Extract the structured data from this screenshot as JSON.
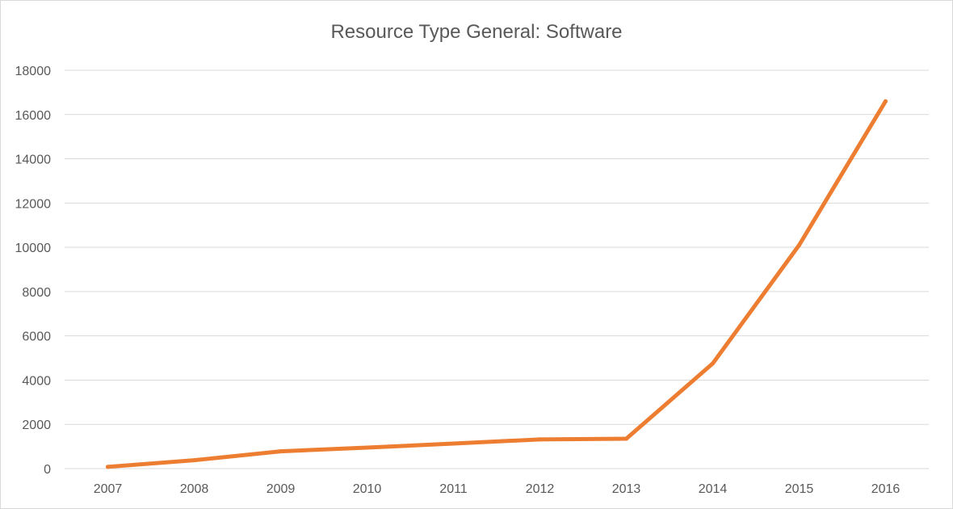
{
  "chart_data": {
    "type": "line",
    "title": "Resource Type General: Software",
    "xlabel": "",
    "ylabel": "",
    "categories": [
      "2007",
      "2008",
      "2009",
      "2010",
      "2011",
      "2012",
      "2013",
      "2014",
      "2015",
      "2016"
    ],
    "series": [
      {
        "values": [
          80,
          380,
          780,
          950,
          1130,
          1320,
          1350,
          4750,
          10100,
          16600
        ],
        "color": "#ED7D31"
      }
    ],
    "ylim": [
      0,
      18000
    ],
    "yticks": [
      "0",
      "2000",
      "4000",
      "6000",
      "8000",
      "10000",
      "12000",
      "14000",
      "16000",
      "18000"
    ],
    "grid": true,
    "legend": "none"
  }
}
